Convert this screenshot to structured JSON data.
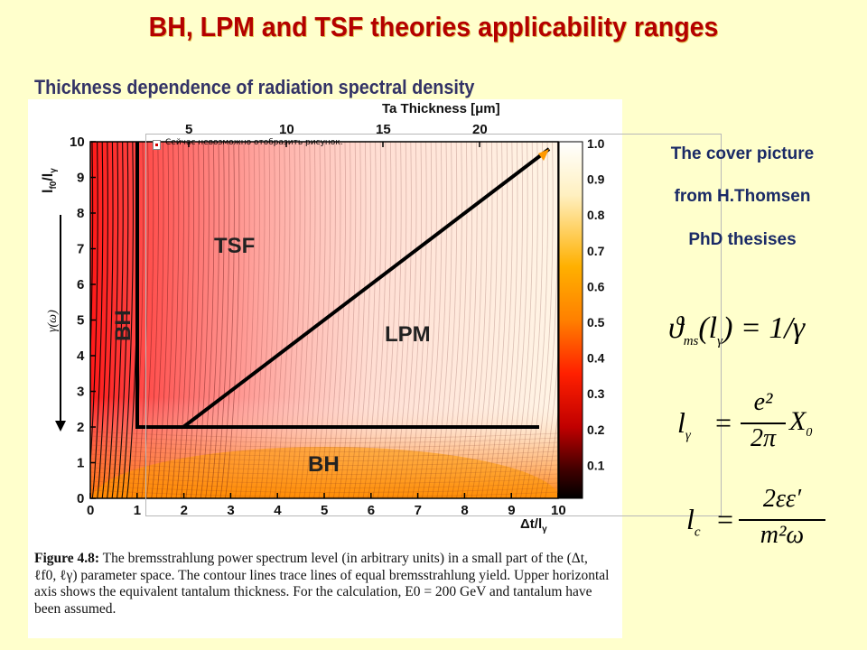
{
  "header": {
    "title": "BH, LPM and TSF theories applicability ranges",
    "subtitle": "Thickness dependence of radiation spectral density"
  },
  "figure": {
    "broken_image_text": "Сейчас невозможно отобразить рисунок.",
    "top_axis_title": "Ta Thickness [μm]",
    "top_ticks": [
      "5",
      "10",
      "15",
      "20"
    ],
    "y_ticks": [
      "0",
      "1",
      "2",
      "3",
      "4",
      "5",
      "6",
      "7",
      "8",
      "9",
      "10"
    ],
    "x_ticks": [
      "0",
      "1",
      "2",
      "3",
      "4",
      "5",
      "6",
      "7",
      "8",
      "9",
      "10"
    ],
    "x_axis_label": "Δt/l",
    "x_axis_label_sub": "γ",
    "y_axis_label": "l",
    "y_axis_label_sub": "f0",
    "y_axis_label_den": "/l",
    "y_axis_label_den_sub": "γ",
    "arrow_label": "γ(ω)",
    "regions": {
      "tsf": "TSF",
      "lpm": "LPM",
      "bh_left": "BH",
      "bh_bottom": "BH"
    },
    "colorbar_ticks": [
      "1.0",
      "0.9",
      "0.8",
      "0.7",
      "0.6",
      "0.5",
      "0.4",
      "0.3",
      "0.2",
      "0.1"
    ],
    "colors": {
      "dark": "#000000",
      "red": "#e00000",
      "orange": "#ff9900",
      "pale": "#fff8e0"
    },
    "caption_lead": "Figure 4.8:",
    "caption_text": "The bremsstrahlung power spectrum level (in arbitrary units) in a small part of the (Δt, ℓf0, ℓγ) parameter space. The contour lines trace lines of equal bremsstrahlung yield. Upper horizontal axis shows the equivalent tantalum thickness. For the calculation, E0 = 200 GeV and tantalum have been assumed."
  },
  "side": {
    "cover_line1": "The cover picture",
    "cover_line2": "from H.Thomsen",
    "cover_line3": "PhD thesises"
  },
  "formulas": {
    "f1_lhs": "ϑ",
    "f1_sub": "ms",
    "f1_arg": "(l",
    "f1_arg_sub": "γ",
    "f1_rhs": ") = 1/γ",
    "f2_lhs": "l",
    "f2_lhs_sub": "γ",
    "f2_num": "e²",
    "f2_den": "2π",
    "f2_tail": "X",
    "f2_tail_sub": "0",
    "f3_lhs": "l",
    "f3_lhs_sub": "c",
    "f3_num": "2εε′",
    "f3_den": "m²ω"
  }
}
